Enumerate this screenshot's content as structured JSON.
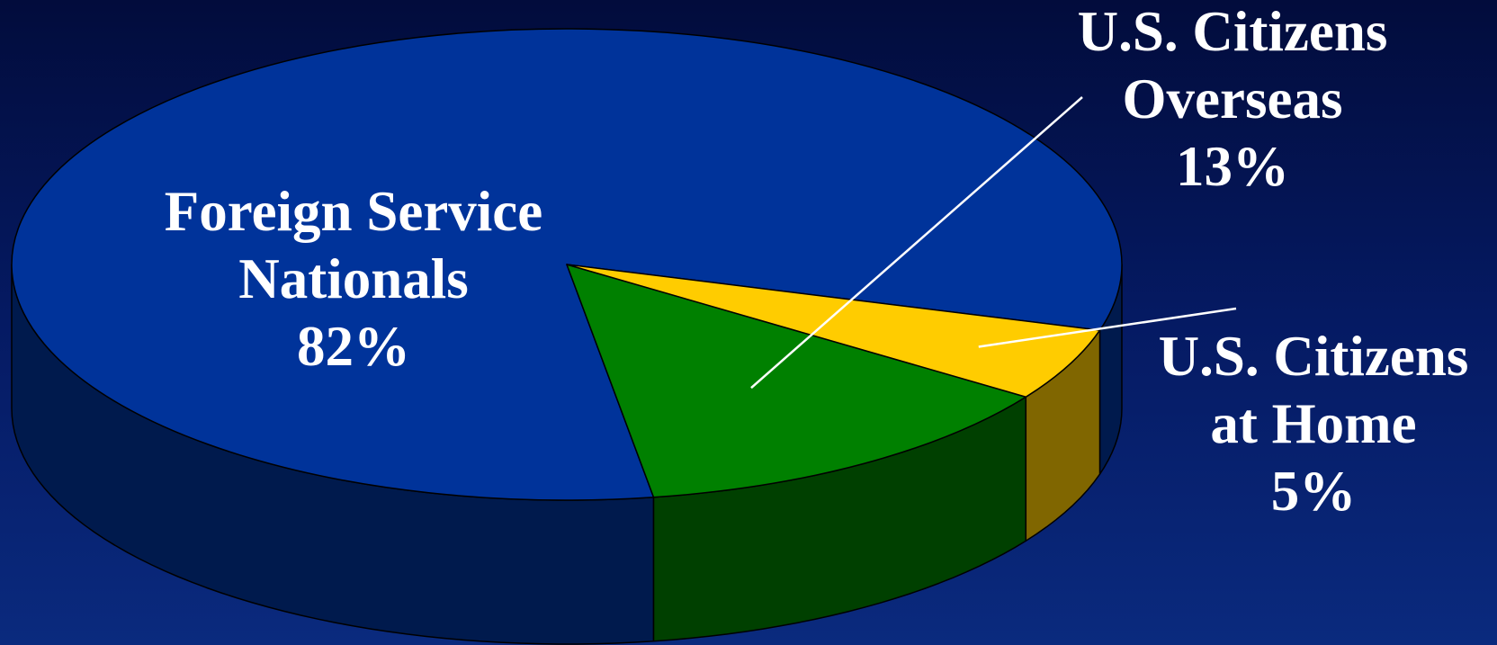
{
  "chart_data": {
    "type": "pie",
    "style": "3d",
    "slices": [
      {
        "name": "Foreign Service Nationals",
        "label_lines": [
          "Foreign Service",
          "Nationals"
        ],
        "pct_label": "82%",
        "value": 82,
        "color": "#00339a",
        "side_color": "#001a4d"
      },
      {
        "name": "U.S. Citizens Overseas",
        "label_lines": [
          "U.S. Citizens",
          "Overseas"
        ],
        "pct_label": "13%",
        "value": 13,
        "color": "#008000",
        "side_color": "#004000"
      },
      {
        "name": "U.S. Citizens at Home",
        "label_lines": [
          "U.S. Citizens",
          "at Home"
        ],
        "pct_label": "5%",
        "value": 5,
        "color": "#ffcc00",
        "side_color": "#806600"
      }
    ]
  },
  "colors": {
    "background_top": "#020c3c",
    "background_bottom": "#0a2a7e",
    "label": "#ffffff",
    "leader_line": "#ffffff",
    "outline": "#000000"
  }
}
